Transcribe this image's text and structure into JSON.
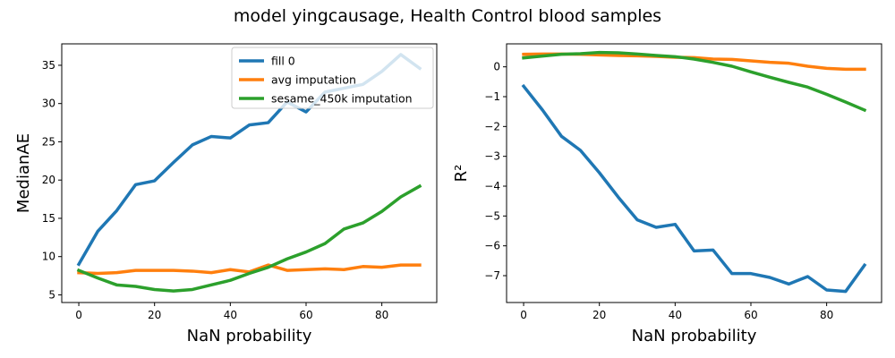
{
  "figure": {
    "suptitle": "model yingcausage, Health Control blood samples"
  },
  "chart_data": [
    {
      "type": "line",
      "xlabel": "NaN probability",
      "ylabel": "MedianAE",
      "xlim": [
        -4.5,
        94.5
      ],
      "ylim": [
        4.0,
        37.8
      ],
      "xticks": [
        0,
        20,
        40,
        60,
        80
      ],
      "yticks": [
        5,
        10,
        15,
        20,
        25,
        30,
        35
      ],
      "grid": false,
      "legend": "top-right",
      "x": [
        0,
        5,
        10,
        15,
        20,
        25,
        30,
        35,
        40,
        45,
        50,
        55,
        60,
        65,
        70,
        75,
        80,
        85,
        90
      ],
      "series": [
        {
          "name": "fill 0",
          "color": "#1f77b4",
          "values": [
            9.0,
            13.3,
            16.0,
            19.4,
            19.9,
            22.3,
            24.6,
            25.7,
            25.5,
            27.2,
            27.5,
            30.2,
            28.9,
            31.5,
            32.0,
            32.5,
            34.2,
            36.4,
            34.6
          ]
        },
        {
          "name": "avg imputation",
          "color": "#ff7f0e",
          "values": [
            7.9,
            7.8,
            7.9,
            8.2,
            8.2,
            8.2,
            8.1,
            7.9,
            8.3,
            8.0,
            8.9,
            8.2,
            8.3,
            8.4,
            8.3,
            8.7,
            8.6,
            8.9,
            8.9
          ]
        },
        {
          "name": "sesame_450k imputation",
          "color": "#2ca02c",
          "values": [
            8.2,
            7.2,
            6.3,
            6.1,
            5.7,
            5.5,
            5.7,
            6.3,
            6.9,
            7.8,
            8.6,
            9.7,
            10.6,
            11.7,
            13.6,
            14.4,
            15.9,
            17.8,
            19.2
          ]
        }
      ]
    },
    {
      "type": "line",
      "xlabel": "NaN probability",
      "ylabel": "R²",
      "xlim": [
        -4.5,
        94.5
      ],
      "ylim": [
        -7.9,
        0.77
      ],
      "xticks": [
        0,
        20,
        40,
        60,
        80
      ],
      "yticks": [
        0,
        -1,
        -2,
        -3,
        -4,
        -5,
        -6,
        -7
      ],
      "grid": false,
      "legend": "none",
      "x": [
        0,
        5,
        10,
        15,
        20,
        25,
        30,
        35,
        40,
        45,
        50,
        55,
        60,
        65,
        70,
        75,
        80,
        85,
        90
      ],
      "series": [
        {
          "name": "fill 0",
          "color": "#1f77b4",
          "values": [
            -0.65,
            -1.45,
            -2.33,
            -2.8,
            -3.55,
            -4.37,
            -5.13,
            -5.38,
            -5.28,
            -6.17,
            -6.14,
            -6.93,
            -6.93,
            -7.06,
            -7.28,
            -7.03,
            -7.48,
            -7.53,
            -6.65
          ]
        },
        {
          "name": "avg imputation",
          "color": "#ff7f0e",
          "values": [
            0.42,
            0.43,
            0.43,
            0.42,
            0.4,
            0.38,
            0.37,
            0.35,
            0.32,
            0.31,
            0.26,
            0.25,
            0.2,
            0.15,
            0.12,
            0.02,
            -0.05,
            -0.08,
            -0.08
          ]
        },
        {
          "name": "sesame_450k imputation",
          "color": "#2ca02c",
          "values": [
            0.3,
            0.36,
            0.42,
            0.44,
            0.48,
            0.47,
            0.43,
            0.38,
            0.34,
            0.26,
            0.15,
            0.02,
            -0.17,
            -0.35,
            -0.52,
            -0.68,
            -0.92,
            -1.18,
            -1.45
          ]
        }
      ]
    }
  ]
}
